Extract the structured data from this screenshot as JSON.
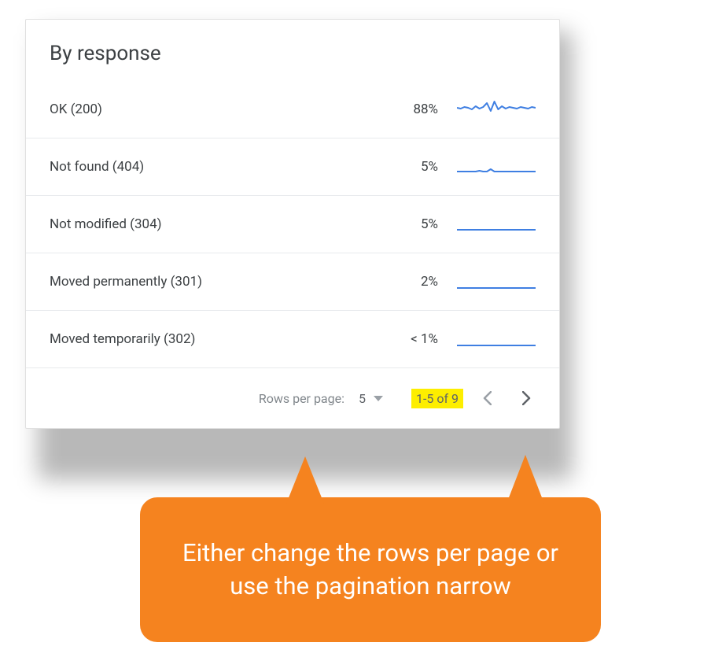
{
  "card": {
    "title": "By response",
    "spark_color": "#3f7fe2",
    "spark_width": 2
  },
  "rows": [
    {
      "label": "OK (200)",
      "value": "88%",
      "spark": [
        12,
        13,
        11,
        12,
        14,
        10,
        13,
        11,
        6,
        16,
        4,
        14,
        10,
        13,
        11,
        12,
        13,
        11,
        12,
        13,
        11,
        12
      ]
    },
    {
      "label": "Not found (404)",
      "value": "5%",
      "spark": [
        20,
        20,
        20,
        20,
        20,
        20,
        19,
        20,
        20,
        17,
        20,
        20,
        20,
        20,
        20,
        20,
        20,
        20,
        20,
        20,
        20,
        20
      ]
    },
    {
      "label": "Not modified (304)",
      "value": "5%",
      "spark": [
        21,
        21,
        21,
        21,
        21,
        21,
        21,
        21,
        21,
        21,
        21,
        21,
        21,
        21,
        21,
        21,
        21,
        21,
        21,
        21,
        21,
        21
      ]
    },
    {
      "label": "Moved permanently (301)",
      "value": "2%",
      "spark": [
        22,
        22,
        22,
        22,
        22,
        22,
        22,
        22,
        22,
        22,
        22,
        22,
        22,
        22,
        22,
        22,
        22,
        22,
        22,
        22,
        22,
        22
      ]
    },
    {
      "label": "Moved temporarily (302)",
      "value": "< 1%",
      "spark": [
        22,
        22,
        22,
        22,
        22,
        22,
        22,
        22,
        22,
        22,
        22,
        22,
        22,
        22,
        22,
        22,
        22,
        22,
        22,
        22,
        22,
        22
      ]
    }
  ],
  "pager": {
    "rows_label": "Rows per page:",
    "rows_value": "5",
    "range": "1-5 of 9",
    "prev_enabled": false,
    "next_enabled": true
  },
  "callout": {
    "text": "Either change the rows per page or use the pagination narrow",
    "bg": "#f5831f",
    "fg": "#ffffff"
  }
}
